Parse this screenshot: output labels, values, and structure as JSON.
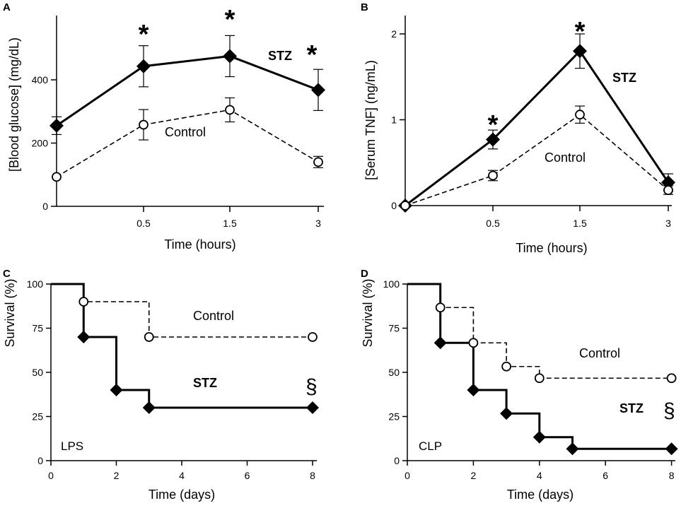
{
  "chart_data": [
    {
      "panel": "A",
      "type": "line",
      "ylabel": "[Blood glucose] (mg/dL)",
      "xlabel": "Time (hours)",
      "categories": [
        "0",
        "0.5",
        "1.5",
        "3"
      ],
      "xticks": [
        "0.5",
        "1.5",
        "3"
      ],
      "yticks": [
        0,
        200,
        400
      ],
      "ylim": [
        0,
        580
      ],
      "series": [
        {
          "name": "STZ",
          "style": "solid-diamond",
          "values": [
            255,
            443,
            475,
            368
          ],
          "errors": [
            28,
            65,
            65,
            65
          ]
        },
        {
          "name": "Control",
          "style": "dashed-circle",
          "values": [
            93,
            258,
            305,
            140
          ],
          "errors": [
            0,
            48,
            38,
            18
          ]
        }
      ],
      "significance": [
        {
          "at": "0.5",
          "mark": "*"
        },
        {
          "at": "1.5",
          "mark": "*"
        },
        {
          "at": "3",
          "mark": "*"
        }
      ]
    },
    {
      "panel": "B",
      "type": "line",
      "ylabel": "[Serum TNF] (ng/mL)",
      "xlabel": "Time (hours)",
      "categories": [
        "0",
        "0.5",
        "1.5",
        "3"
      ],
      "xticks": [
        "0.5",
        "1.5",
        "3"
      ],
      "yticks": [
        0,
        1,
        2
      ],
      "ylim": [
        0,
        2.15
      ],
      "series": [
        {
          "name": "STZ",
          "style": "solid-diamond",
          "values": [
            0,
            0.77,
            1.8,
            0.27
          ],
          "errors": [
            0,
            0.11,
            0.2,
            0.1
          ]
        },
        {
          "name": "Control",
          "style": "dashed-circle",
          "values": [
            0,
            0.35,
            1.06,
            0.18
          ],
          "errors": [
            0,
            0.06,
            0.1,
            0.05
          ]
        }
      ],
      "significance": [
        {
          "at": "0.5",
          "mark": "*"
        },
        {
          "at": "1.5",
          "mark": "*"
        }
      ]
    },
    {
      "panel": "C",
      "type": "survival",
      "ylabel": "Survival (%)",
      "xlabel": "Time (days)",
      "xticks": [
        0,
        2,
        4,
        6,
        8
      ],
      "yticks": [
        0,
        25,
        50,
        75,
        100
      ],
      "xlim": [
        0,
        8
      ],
      "ylim": [
        0,
        100
      ],
      "annotation": "LPS",
      "section_mark": "§",
      "series": [
        {
          "name": "Control",
          "style": "dashed-circle",
          "events": [
            [
              1,
              90
            ],
            [
              3,
              70
            ],
            [
              8,
              70
            ]
          ]
        },
        {
          "name": "STZ",
          "style": "solid-diamond",
          "events": [
            [
              1,
              70
            ],
            [
              2,
              40
            ],
            [
              3,
              30
            ],
            [
              8,
              30
            ]
          ]
        }
      ]
    },
    {
      "panel": "D",
      "type": "survival",
      "ylabel": "Survival (%)",
      "xlabel": "Time (days)",
      "xticks": [
        0,
        2,
        4,
        6,
        8
      ],
      "yticks": [
        0,
        25,
        50,
        75,
        100
      ],
      "xlim": [
        0,
        8
      ],
      "ylim": [
        0,
        100
      ],
      "annotation": "CLP",
      "section_mark": "§",
      "series": [
        {
          "name": "Control",
          "style": "dashed-circle",
          "events": [
            [
              1,
              86.7
            ],
            [
              2,
              66.7
            ],
            [
              3,
              53.3
            ],
            [
              4,
              46.7
            ],
            [
              8,
              46.7
            ]
          ]
        },
        {
          "name": "STZ",
          "style": "solid-diamond",
          "events": [
            [
              1,
              66.7
            ],
            [
              2,
              40
            ],
            [
              3,
              26.7
            ],
            [
              4,
              13.3
            ],
            [
              5,
              6.7
            ],
            [
              8,
              6.7
            ]
          ]
        }
      ]
    }
  ]
}
